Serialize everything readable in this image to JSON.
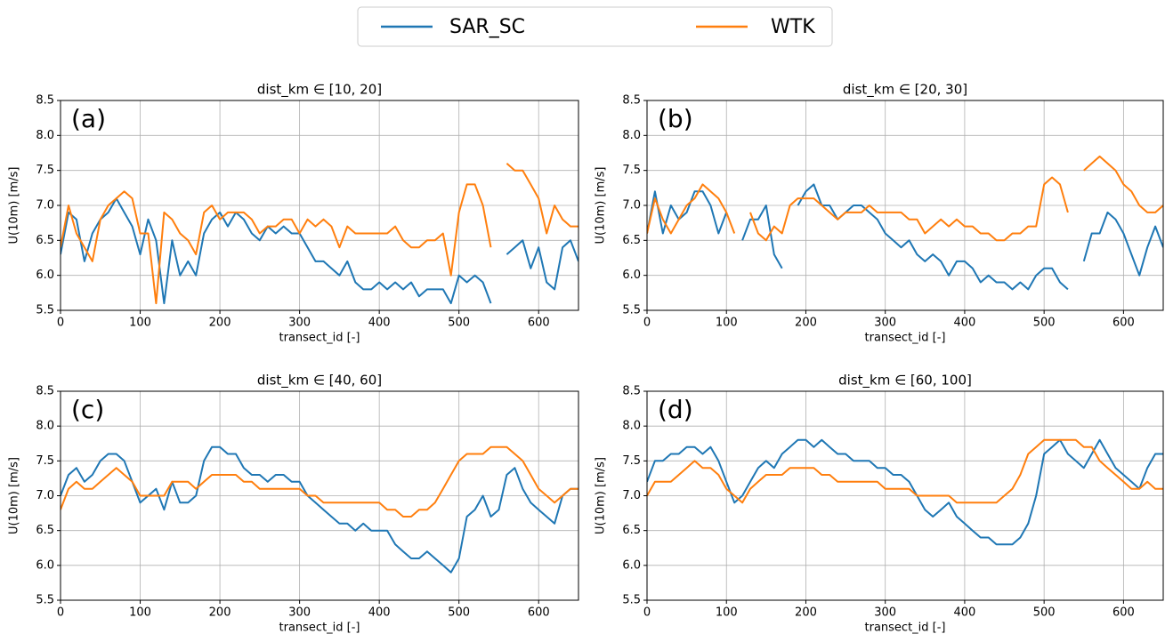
{
  "chart_data": [
    {
      "type": "line",
      "title": "dist_km ∈ [10, 20]",
      "label": "(a)",
      "xlabel": "transect_id [-]",
      "ylabel": "U(10m) [m/s]",
      "grid": true,
      "xlim": [
        0,
        650
      ],
      "ylim": [
        5.5,
        8.5
      ],
      "xticks": [
        0,
        100,
        200,
        300,
        400,
        500,
        600
      ],
      "yticks": [
        5.5,
        {
          "value": 6,
          "label": "6.0"
        },
        6.5,
        {
          "value": 7,
          "label": "7.0"
        },
        7.5,
        {
          "value": 8,
          "label": "8.0"
        },
        8.5
      ],
      "x": [
        0,
        10,
        20,
        30,
        40,
        50,
        60,
        70,
        80,
        90,
        100,
        110,
        120,
        130,
        140,
        150,
        160,
        170,
        180,
        190,
        200,
        210,
        220,
        230,
        240,
        250,
        260,
        270,
        280,
        290,
        300,
        310,
        320,
        330,
        340,
        350,
        360,
        370,
        380,
        390,
        400,
        410,
        420,
        430,
        440,
        450,
        460,
        470,
        480,
        490,
        500,
        510,
        520,
        530,
        540,
        550,
        560,
        570,
        580,
        590,
        600,
        610,
        620,
        630,
        640,
        650
      ],
      "series": [
        {
          "name": "SAR_SC",
          "color": "#1f77b4",
          "values": [
            6.3,
            6.9,
            6.8,
            6.2,
            6.6,
            6.8,
            6.9,
            7.1,
            6.9,
            6.7,
            6.3,
            6.8,
            6.5,
            5.6,
            6.5,
            6.0,
            6.2,
            6.0,
            6.6,
            6.8,
            6.9,
            6.7,
            6.9,
            6.8,
            6.6,
            6.5,
            6.7,
            6.6,
            6.7,
            6.6,
            6.6,
            6.4,
            6.2,
            6.2,
            6.1,
            6.0,
            6.2,
            5.9,
            5.8,
            5.8,
            5.9,
            5.8,
            5.9,
            5.8,
            5.9,
            5.7,
            5.8,
            5.8,
            5.8,
            5.6,
            6.0,
            5.9,
            6.0,
            5.9,
            5.6,
            null,
            6.3,
            6.4,
            6.5,
            6.1,
            6.4,
            5.9,
            5.8,
            6.4,
            6.5,
            6.2
          ]
        },
        {
          "name": "WTK",
          "color": "#ff7f0e",
          "values": [
            6.4,
            7.0,
            6.6,
            6.4,
            6.2,
            6.8,
            7.0,
            7.1,
            7.2,
            7.1,
            6.6,
            6.6,
            5.6,
            6.9,
            6.8,
            6.6,
            6.5,
            6.3,
            6.9,
            7.0,
            6.8,
            6.9,
            6.9,
            6.9,
            6.8,
            6.6,
            6.7,
            6.7,
            6.8,
            6.8,
            6.6,
            6.8,
            6.7,
            6.8,
            6.7,
            6.4,
            6.7,
            6.6,
            6.6,
            6.6,
            6.6,
            6.6,
            6.7,
            6.5,
            6.4,
            6.4,
            6.5,
            6.5,
            6.6,
            6.0,
            6.9,
            7.3,
            7.3,
            7.0,
            6.4,
            null,
            7.6,
            7.5,
            7.5,
            7.3,
            7.1,
            6.6,
            7.0,
            6.8,
            6.7,
            6.7
          ]
        }
      ]
    },
    {
      "type": "line",
      "title": "dist_km ∈ [20, 30]",
      "label": "(b)",
      "xlabel": "transect_id [-]",
      "ylabel": "U(10m) [m/s]",
      "grid": true,
      "xlim": [
        0,
        650
      ],
      "ylim": [
        5.5,
        8.5
      ],
      "xticks": [
        0,
        100,
        200,
        300,
        400,
        500,
        600
      ],
      "yticks": [
        5.5,
        {
          "value": 6,
          "label": "6.0"
        },
        6.5,
        {
          "value": 7,
          "label": "7.0"
        },
        7.5,
        {
          "value": 8,
          "label": "8.0"
        },
        8.5
      ],
      "x": [
        0,
        10,
        20,
        30,
        40,
        50,
        60,
        70,
        80,
        90,
        100,
        110,
        120,
        130,
        140,
        150,
        160,
        170,
        180,
        190,
        200,
        210,
        220,
        230,
        240,
        250,
        260,
        270,
        280,
        290,
        300,
        310,
        320,
        330,
        340,
        350,
        360,
        370,
        380,
        390,
        400,
        410,
        420,
        430,
        440,
        450,
        460,
        470,
        480,
        490,
        500,
        510,
        520,
        530,
        540,
        550,
        560,
        570,
        580,
        590,
        600,
        610,
        620,
        630,
        640,
        650
      ],
      "series": [
        {
          "color": "#1f77b4",
          "values": [
            6.6,
            7.2,
            6.6,
            7.0,
            6.8,
            6.9,
            7.2,
            7.2,
            7.0,
            6.6,
            6.9,
            null,
            6.5,
            6.8,
            6.8,
            7.0,
            6.3,
            6.1,
            null,
            7.0,
            7.2,
            7.3,
            7.0,
            7.0,
            6.8,
            6.9,
            7.0,
            7.0,
            6.9,
            6.8,
            6.6,
            6.5,
            6.4,
            6.5,
            6.3,
            6.2,
            6.3,
            6.2,
            6.0,
            6.2,
            6.2,
            6.1,
            5.9,
            6.0,
            5.9,
            5.9,
            5.8,
            5.9,
            5.8,
            6.0,
            6.1,
            6.1,
            5.9,
            5.8,
            null,
            6.2,
            6.6,
            6.6,
            6.9,
            6.8,
            6.6,
            6.3,
            6.0,
            6.4,
            6.7,
            6.4
          ]
        },
        {
          "color": "#ff7f0e",
          "values": [
            6.6,
            7.1,
            6.8,
            6.6,
            6.8,
            7.0,
            7.1,
            7.3,
            7.2,
            7.1,
            6.9,
            6.6,
            null,
            6.9,
            6.6,
            6.5,
            6.7,
            6.6,
            7.0,
            7.1,
            7.1,
            7.1,
            7.0,
            6.9,
            6.8,
            6.9,
            6.9,
            6.9,
            7.0,
            6.9,
            6.9,
            6.9,
            6.9,
            6.8,
            6.8,
            6.6,
            6.7,
            6.8,
            6.7,
            6.8,
            6.7,
            6.7,
            6.6,
            6.6,
            6.5,
            6.5,
            6.6,
            6.6,
            6.7,
            6.7,
            7.3,
            7.4,
            7.3,
            6.9,
            null,
            7.5,
            7.6,
            7.7,
            7.6,
            7.5,
            7.3,
            7.2,
            7.0,
            6.9,
            6.9,
            7.0
          ]
        }
      ]
    },
    {
      "type": "line",
      "title": "dist_km ∈ [40, 60]",
      "label": "(c)",
      "xlabel": "transect_id [-]",
      "ylabel": "U(10m) [m/s]",
      "grid": true,
      "xlim": [
        0,
        650
      ],
      "ylim": [
        5.5,
        8.5
      ],
      "xticks": [
        0,
        100,
        200,
        300,
        400,
        500,
        600
      ],
      "yticks": [
        5.5,
        {
          "value": 6,
          "label": "6.0"
        },
        6.5,
        {
          "value": 7,
          "label": "7.0"
        },
        7.5,
        {
          "value": 8,
          "label": "8.0"
        },
        8.5
      ],
      "x": [
        0,
        10,
        20,
        30,
        40,
        50,
        60,
        70,
        80,
        90,
        100,
        110,
        120,
        130,
        140,
        150,
        160,
        170,
        180,
        190,
        200,
        210,
        220,
        230,
        240,
        250,
        260,
        270,
        280,
        290,
        300,
        310,
        320,
        330,
        340,
        350,
        360,
        370,
        380,
        390,
        400,
        410,
        420,
        430,
        440,
        450,
        460,
        470,
        480,
        490,
        500,
        510,
        520,
        530,
        540,
        550,
        560,
        570,
        580,
        590,
        600,
        610,
        620,
        630,
        640,
        650
      ],
      "series": [
        {
          "color": "#1f77b4",
          "values": [
            7.0,
            7.3,
            7.4,
            7.2,
            7.3,
            7.5,
            7.6,
            7.6,
            7.5,
            7.2,
            6.9,
            7.0,
            7.1,
            6.8,
            7.2,
            6.9,
            6.9,
            7.0,
            7.5,
            7.7,
            7.7,
            7.6,
            7.6,
            7.4,
            7.3,
            7.3,
            7.2,
            7.3,
            7.3,
            7.2,
            7.2,
            7.0,
            6.9,
            6.8,
            6.7,
            6.6,
            6.6,
            6.5,
            6.6,
            6.5,
            6.5,
            6.5,
            6.3,
            6.2,
            6.1,
            6.1,
            6.2,
            6.1,
            6.0,
            5.9,
            6.1,
            6.7,
            6.8,
            7.0,
            6.7,
            6.8,
            7.3,
            7.4,
            7.1,
            6.9,
            6.8,
            6.7,
            6.6,
            7.0,
            7.1,
            7.1
          ]
        },
        {
          "color": "#ff7f0e",
          "values": [
            6.8,
            7.1,
            7.2,
            7.1,
            7.1,
            7.2,
            7.3,
            7.4,
            7.3,
            7.2,
            7.0,
            7.0,
            7.0,
            7.0,
            7.2,
            7.2,
            7.2,
            7.1,
            7.2,
            7.3,
            7.3,
            7.3,
            7.3,
            7.2,
            7.2,
            7.1,
            7.1,
            7.1,
            7.1,
            7.1,
            7.1,
            7.0,
            7.0,
            6.9,
            6.9,
            6.9,
            6.9,
            6.9,
            6.9,
            6.9,
            6.9,
            6.8,
            6.8,
            6.7,
            6.7,
            6.8,
            6.8,
            6.9,
            7.1,
            7.3,
            7.5,
            7.6,
            7.6,
            7.6,
            7.7,
            7.7,
            7.7,
            7.6,
            7.5,
            7.3,
            7.1,
            7.0,
            6.9,
            7.0,
            7.1,
            7.1
          ]
        }
      ]
    },
    {
      "type": "line",
      "title": "dist_km ∈ [60, 100]",
      "label": "(d)",
      "xlabel": "transect_id [-]",
      "ylabel": "U(10m) [m/s]",
      "grid": true,
      "xlim": [
        0,
        650
      ],
      "ylim": [
        5.5,
        8.5
      ],
      "xticks": [
        0,
        100,
        200,
        300,
        400,
        500,
        600
      ],
      "yticks": [
        5.5,
        {
          "value": 6,
          "label": "6.0"
        },
        6.5,
        {
          "value": 7,
          "label": "7.0"
        },
        7.5,
        {
          "value": 8,
          "label": "8.0"
        },
        8.5
      ],
      "x": [
        0,
        10,
        20,
        30,
        40,
        50,
        60,
        70,
        80,
        90,
        100,
        110,
        120,
        130,
        140,
        150,
        160,
        170,
        180,
        190,
        200,
        210,
        220,
        230,
        240,
        250,
        260,
        270,
        280,
        290,
        300,
        310,
        320,
        330,
        340,
        350,
        360,
        370,
        380,
        390,
        400,
        410,
        420,
        430,
        440,
        450,
        460,
        470,
        480,
        490,
        500,
        510,
        520,
        530,
        540,
        550,
        560,
        570,
        580,
        590,
        600,
        610,
        620,
        630,
        640,
        650
      ],
      "series": [
        {
          "color": "#1f77b4",
          "values": [
            7.2,
            7.5,
            7.5,
            7.6,
            7.6,
            7.7,
            7.7,
            7.6,
            7.7,
            7.5,
            7.2,
            6.9,
            7.0,
            7.2,
            7.4,
            7.5,
            7.4,
            7.6,
            7.7,
            7.8,
            7.8,
            7.7,
            7.8,
            7.7,
            7.6,
            7.6,
            7.5,
            7.5,
            7.5,
            7.4,
            7.4,
            7.3,
            7.3,
            7.2,
            7.0,
            6.8,
            6.7,
            6.8,
            6.9,
            6.7,
            6.6,
            6.5,
            6.4,
            6.4,
            6.3,
            6.3,
            6.3,
            6.4,
            6.6,
            7.0,
            7.6,
            7.7,
            7.8,
            7.6,
            7.5,
            7.4,
            7.6,
            7.8,
            7.6,
            7.4,
            7.3,
            7.2,
            7.1,
            7.4,
            7.6,
            7.6
          ]
        },
        {
          "color": "#ff7f0e",
          "values": [
            7.0,
            7.2,
            7.2,
            7.2,
            7.3,
            7.4,
            7.5,
            7.4,
            7.4,
            7.3,
            7.1,
            7.0,
            6.9,
            7.1,
            7.2,
            7.3,
            7.3,
            7.3,
            7.4,
            7.4,
            7.4,
            7.4,
            7.3,
            7.3,
            7.2,
            7.2,
            7.2,
            7.2,
            7.2,
            7.2,
            7.1,
            7.1,
            7.1,
            7.1,
            7.0,
            7.0,
            7.0,
            7.0,
            7.0,
            6.9,
            6.9,
            6.9,
            6.9,
            6.9,
            6.9,
            7.0,
            7.1,
            7.3,
            7.6,
            7.7,
            7.8,
            7.8,
            7.8,
            7.8,
            7.8,
            7.7,
            7.7,
            7.5,
            7.4,
            7.3,
            7.2,
            7.1,
            7.1,
            7.2,
            7.1,
            7.1
          ]
        }
      ]
    }
  ]
}
